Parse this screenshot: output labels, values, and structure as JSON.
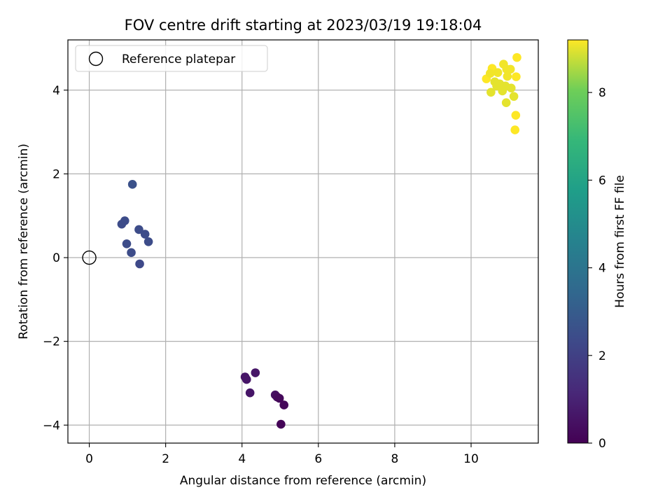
{
  "chart_data": {
    "type": "scatter",
    "title": "FOV centre drift starting at 2023/03/19 19:18:04",
    "xlabel": "Angular distance from reference (arcmin)",
    "ylabel": "Rotation from reference (arcmin)",
    "xlim": [
      -0.56,
      11.76
    ],
    "ylim": [
      -4.43,
      5.2
    ],
    "xticks": [
      0,
      2,
      4,
      6,
      8,
      10
    ],
    "yticks": [
      -4,
      -2,
      0,
      2,
      4
    ],
    "grid": true,
    "legend": {
      "placement": "top-left",
      "entries": [
        "Reference platepar"
      ]
    },
    "reference_point": {
      "x": 0,
      "y": 0,
      "marker": "open-circle",
      "edge_color": "#000000"
    },
    "colorbar": {
      "label": "Hours from first FF file",
      "colormap": "viridis",
      "range": [
        0,
        9.2
      ],
      "ticks": [
        0,
        2,
        4,
        6,
        8
      ]
    },
    "points": [
      {
        "x": 4.08,
        "y": -2.85,
        "hours": 0.6
      },
      {
        "x": 4.12,
        "y": -2.91,
        "hours": 0.6
      },
      {
        "x": 4.35,
        "y": -2.75,
        "hours": 0.6
      },
      {
        "x": 4.21,
        "y": -3.23,
        "hours": 0.6
      },
      {
        "x": 4.87,
        "y": -3.28,
        "hours": 0.4
      },
      {
        "x": 4.92,
        "y": -3.33,
        "hours": 0.3
      },
      {
        "x": 4.98,
        "y": -3.36,
        "hours": 0.2
      },
      {
        "x": 5.1,
        "y": -3.52,
        "hours": 0.2
      },
      {
        "x": 5.02,
        "y": -3.98,
        "hours": 0.1
      },
      {
        "x": 1.13,
        "y": 1.75,
        "hours": 2.6
      },
      {
        "x": 0.85,
        "y": 0.8,
        "hours": 2.4
      },
      {
        "x": 0.93,
        "y": 0.88,
        "hours": 2.4
      },
      {
        "x": 1.3,
        "y": 0.67,
        "hours": 2.4
      },
      {
        "x": 1.46,
        "y": 0.56,
        "hours": 2.4
      },
      {
        "x": 1.55,
        "y": 0.38,
        "hours": 2.4
      },
      {
        "x": 0.98,
        "y": 0.33,
        "hours": 2.4
      },
      {
        "x": 1.1,
        "y": 0.12,
        "hours": 2.4
      },
      {
        "x": 1.32,
        "y": -0.15,
        "hours": 2.3
      },
      {
        "x": 11.2,
        "y": 4.78,
        "hours": 9.2
      },
      {
        "x": 10.55,
        "y": 4.52,
        "hours": 9.2
      },
      {
        "x": 10.7,
        "y": 4.42,
        "hours": 9.1
      },
      {
        "x": 10.85,
        "y": 4.62,
        "hours": 9.1
      },
      {
        "x": 10.93,
        "y": 4.5,
        "hours": 9.1
      },
      {
        "x": 11.03,
        "y": 4.5,
        "hours": 9.1
      },
      {
        "x": 10.4,
        "y": 4.27,
        "hours": 9.2
      },
      {
        "x": 10.5,
        "y": 4.4,
        "hours": 9.1
      },
      {
        "x": 10.95,
        "y": 4.33,
        "hours": 9.1
      },
      {
        "x": 11.18,
        "y": 4.32,
        "hours": 9.2
      },
      {
        "x": 10.62,
        "y": 4.2,
        "hours": 9.0
      },
      {
        "x": 10.75,
        "y": 4.15,
        "hours": 9.0
      },
      {
        "x": 10.67,
        "y": 4.1,
        "hours": 9.0
      },
      {
        "x": 10.9,
        "y": 4.1,
        "hours": 9.0
      },
      {
        "x": 11.05,
        "y": 4.05,
        "hours": 9.0
      },
      {
        "x": 10.82,
        "y": 3.98,
        "hours": 9.0
      },
      {
        "x": 10.52,
        "y": 3.95,
        "hours": 9.0
      },
      {
        "x": 11.12,
        "y": 3.85,
        "hours": 9.0
      },
      {
        "x": 10.92,
        "y": 3.7,
        "hours": 9.0
      },
      {
        "x": 11.17,
        "y": 3.4,
        "hours": 9.2
      },
      {
        "x": 11.15,
        "y": 3.05,
        "hours": 9.2
      }
    ]
  }
}
